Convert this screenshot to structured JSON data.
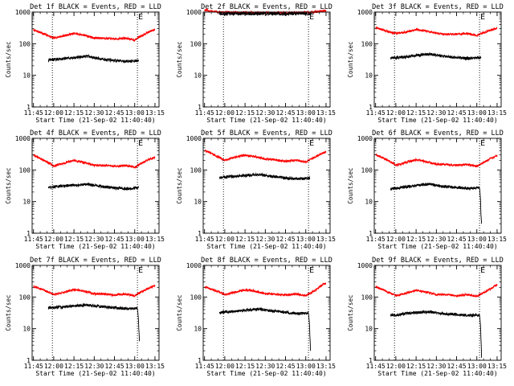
{
  "colors": {
    "events": "#000000",
    "lld": "#ff0000",
    "axis": "#000000",
    "background": "#ffffff"
  },
  "chart_data": [
    {
      "type": "line",
      "title": "Det 1f BLACK = Events, RED = LLD",
      "xlabel": "Start Time (21-Sep-02 11:40:40)",
      "ylabel": "Counts/sec",
      "yscale": "log",
      "ylim": [
        1,
        1000
      ],
      "xlim": [
        -1,
        93
      ],
      "grid": false,
      "x_ticks": [
        0,
        15,
        30,
        45,
        60,
        75,
        90
      ],
      "x_tick_labels": [
        "11:45",
        "12:00",
        "12:15",
        "12:30",
        "12:45",
        "13:00",
        "13:15"
      ],
      "y_ticks": [
        1,
        10,
        100,
        1000
      ],
      "y_tick_labels": [
        "1",
        "10",
        "100",
        "1000"
      ],
      "markers": [
        {
          "x": 14,
          "label": ""
        },
        {
          "x": 77,
          "label": "E"
        }
      ],
      "series": [
        {
          "x": [
            0,
            8,
            15,
            22,
            30,
            38,
            45,
            52,
            60,
            68,
            75,
            82,
            90
          ],
          "values": [
            270,
            200,
            150,
            175,
            210,
            185,
            150,
            150,
            140,
            150,
            130,
            200,
            280
          ]
        },
        {
          "x": [
            11,
            20,
            30,
            40,
            50,
            60,
            70,
            78
          ],
          "values": [
            30,
            33,
            36,
            40,
            33,
            29,
            27,
            30
          ]
        }
      ]
    },
    {
      "type": "line",
      "title": "Det 2f BLACK = Events, RED = LLD",
      "xlabel": "Start Time (21-Sep-02 11:40:40)",
      "ylabel": "Counts/sec",
      "yscale": "log",
      "ylim": [
        1,
        1000
      ],
      "xlim": [
        -1,
        93
      ],
      "grid": false,
      "x_ticks": [
        0,
        15,
        30,
        45,
        60,
        75,
        90
      ],
      "x_tick_labels": [
        "11:45",
        "12:00",
        "12:15",
        "12:30",
        "12:45",
        "13:00",
        "13:15"
      ],
      "y_ticks": [
        1,
        10,
        100,
        1000
      ],
      "y_tick_labels": [
        "1",
        "10",
        "100",
        "1000"
      ],
      "markers": [
        {
          "x": 14,
          "label": ""
        },
        {
          "x": 77,
          "label": "E"
        }
      ],
      "series": [
        {
          "x": [
            0,
            10,
            20,
            30,
            45,
            60,
            70,
            80,
            90
          ],
          "values": [
            1150,
            1000,
            980,
            970,
            960,
            950,
            960,
            990,
            1100
          ]
        },
        {
          "x": [
            11,
            20,
            30,
            45,
            60,
            70,
            79
          ],
          "values": [
            880,
            885,
            880,
            880,
            885,
            880,
            885
          ]
        }
      ]
    },
    {
      "type": "line",
      "title": "Det 3f BLACK = Events, RED = LLD",
      "xlabel": "Start Time (21-Sep-02 11:40:40)",
      "ylabel": "Counts/sec",
      "yscale": "log",
      "ylim": [
        1,
        1000
      ],
      "xlim": [
        -1,
        93
      ],
      "grid": false,
      "x_ticks": [
        0,
        15,
        30,
        45,
        60,
        75,
        90
      ],
      "x_tick_labels": [
        "11:45",
        "12:00",
        "12:15",
        "12:30",
        "12:45",
        "13:00",
        "13:15"
      ],
      "y_ticks": [
        1,
        10,
        100,
        1000
      ],
      "y_tick_labels": [
        "1",
        "10",
        "100",
        "1000"
      ],
      "markers": [
        {
          "x": 14,
          "label": ""
        },
        {
          "x": 77,
          "label": "E"
        }
      ],
      "series": [
        {
          "x": [
            0,
            8,
            15,
            22,
            30,
            38,
            45,
            52,
            60,
            68,
            75,
            82,
            90
          ],
          "values": [
            320,
            250,
            210,
            230,
            280,
            250,
            210,
            200,
            200,
            210,
            180,
            240,
            310
          ]
        },
        {
          "x": [
            11,
            20,
            30,
            40,
            50,
            60,
            70,
            78
          ],
          "values": [
            35,
            38,
            42,
            47,
            40,
            36,
            34,
            36
          ]
        }
      ]
    },
    {
      "type": "line",
      "title": "Det 4f BLACK = Events, RED = LLD",
      "xlabel": "Start Time (21-Sep-02 11:40:40)",
      "ylabel": "Counts/sec",
      "yscale": "log",
      "ylim": [
        1,
        1000
      ],
      "xlim": [
        -1,
        93
      ],
      "grid": false,
      "x_ticks": [
        0,
        15,
        30,
        45,
        60,
        75,
        90
      ],
      "x_tick_labels": [
        "11:45",
        "12:00",
        "12:15",
        "12:30",
        "12:45",
        "13:00",
        "13:15"
      ],
      "y_ticks": [
        1,
        10,
        100,
        1000
      ],
      "y_tick_labels": [
        "1",
        "10",
        "100",
        "1000"
      ],
      "markers": [
        {
          "x": 14,
          "label": ""
        },
        {
          "x": 77,
          "label": "E"
        }
      ],
      "series": [
        {
          "x": [
            0,
            8,
            15,
            22,
            30,
            38,
            45,
            52,
            60,
            68,
            75,
            82,
            90
          ],
          "values": [
            290,
            200,
            130,
            160,
            200,
            170,
            140,
            140,
            130,
            140,
            120,
            180,
            250
          ]
        },
        {
          "x": [
            11,
            20,
            30,
            40,
            50,
            60,
            70,
            78
          ],
          "values": [
            28,
            31,
            33,
            35,
            30,
            27,
            25,
            28
          ]
        }
      ]
    },
    {
      "type": "line",
      "title": "Det 5f BLACK = Events, RED = LLD",
      "xlabel": "Start Time (21-Sep-02 11:40:40)",
      "ylabel": "Counts/sec",
      "yscale": "log",
      "ylim": [
        1,
        1000
      ],
      "xlim": [
        -1,
        93
      ],
      "grid": false,
      "x_ticks": [
        0,
        15,
        30,
        45,
        60,
        75,
        90
      ],
      "x_tick_labels": [
        "11:45",
        "12:00",
        "12:15",
        "12:30",
        "12:45",
        "13:00",
        "13:15"
      ],
      "y_ticks": [
        1,
        10,
        100,
        1000
      ],
      "y_tick_labels": [
        "1",
        "10",
        "100",
        "1000"
      ],
      "markers": [
        {
          "x": 14,
          "label": ""
        },
        {
          "x": 77,
          "label": "E"
        }
      ],
      "series": [
        {
          "x": [
            0,
            8,
            15,
            22,
            30,
            38,
            45,
            52,
            60,
            68,
            75,
            82,
            90
          ],
          "values": [
            420,
            280,
            200,
            250,
            290,
            260,
            220,
            210,
            190,
            200,
            180,
            250,
            380
          ]
        },
        {
          "x": [
            11,
            20,
            30,
            40,
            50,
            60,
            70,
            78
          ],
          "values": [
            58,
            62,
            66,
            72,
            62,
            56,
            52,
            55
          ]
        }
      ]
    },
    {
      "type": "line",
      "title": "Det 6f BLACK = Events, RED = LLD",
      "xlabel": "Start Time (21-Sep-02 11:40:40)",
      "ylabel": "Counts/sec",
      "yscale": "log",
      "ylim": [
        1,
        1000
      ],
      "xlim": [
        -1,
        93
      ],
      "grid": false,
      "x_ticks": [
        0,
        15,
        30,
        45,
        60,
        75,
        90
      ],
      "x_tick_labels": [
        "11:45",
        "12:00",
        "12:15",
        "12:30",
        "12:45",
        "13:00",
        "13:15"
      ],
      "y_ticks": [
        1,
        10,
        100,
        1000
      ],
      "y_tick_labels": [
        "1",
        "10",
        "100",
        "1000"
      ],
      "markers": [
        {
          "x": 14,
          "label": ""
        },
        {
          "x": 77,
          "label": "E"
        }
      ],
      "series": [
        {
          "x": [
            0,
            8,
            15,
            22,
            30,
            38,
            45,
            52,
            60,
            68,
            75,
            82,
            90
          ],
          "values": [
            300,
            210,
            140,
            170,
            210,
            180,
            150,
            150,
            140,
            150,
            130,
            190,
            280
          ]
        },
        {
          "x": [
            11,
            20,
            30,
            40,
            50,
            60,
            70,
            77,
            78,
            78.5
          ],
          "values": [
            25,
            28,
            32,
            36,
            30,
            28,
            26,
            27,
            4,
            2
          ]
        }
      ]
    },
    {
      "type": "line",
      "title": "Det 7f BLACK = Events, RED = LLD",
      "xlabel": "Start Time (21-Sep-02 11:40:40)",
      "ylabel": "Counts/sec",
      "yscale": "log",
      "ylim": [
        1,
        1000
      ],
      "xlim": [
        -1,
        93
      ],
      "grid": false,
      "x_ticks": [
        0,
        15,
        30,
        45,
        60,
        75,
        90
      ],
      "x_tick_labels": [
        "11:45",
        "12:00",
        "12:15",
        "12:30",
        "12:45",
        "13:00",
        "13:15"
      ],
      "y_ticks": [
        1,
        10,
        100,
        1000
      ],
      "y_tick_labels": [
        "1",
        "10",
        "100",
        "1000"
      ],
      "markers": [
        {
          "x": 14,
          "label": ""
        },
        {
          "x": 77,
          "label": "E"
        }
      ],
      "series": [
        {
          "x": [
            0,
            8,
            15,
            22,
            30,
            38,
            45,
            52,
            60,
            68,
            75,
            82,
            90
          ],
          "values": [
            220,
            160,
            120,
            140,
            170,
            150,
            125,
            125,
            115,
            125,
            110,
            160,
            230
          ]
        },
        {
          "x": [
            11,
            20,
            30,
            40,
            50,
            60,
            70,
            77,
            78,
            78.5
          ],
          "values": [
            45,
            48,
            52,
            56,
            50,
            46,
            42,
            44,
            10,
            4
          ]
        }
      ]
    },
    {
      "type": "line",
      "title": "Det 8f BLACK = Events, RED = LLD",
      "xlabel": "Start Time (21-Sep-02 11:40:40)",
      "ylabel": "Counts/sec",
      "yscale": "log",
      "ylim": [
        1,
        1000
      ],
      "xlim": [
        -1,
        93
      ],
      "grid": false,
      "x_ticks": [
        0,
        15,
        30,
        45,
        60,
        75,
        90
      ],
      "x_tick_labels": [
        "11:45",
        "12:00",
        "12:15",
        "12:30",
        "12:45",
        "13:00",
        "13:15"
      ],
      "y_ticks": [
        1,
        10,
        100,
        1000
      ],
      "y_tick_labels": [
        "1",
        "10",
        "100",
        "1000"
      ],
      "markers": [
        {
          "x": 14,
          "label": ""
        },
        {
          "x": 77,
          "label": "E"
        }
      ],
      "series": [
        {
          "x": [
            0,
            8,
            15,
            22,
            30,
            38,
            45,
            52,
            60,
            68,
            75,
            82,
            90
          ],
          "values": [
            210,
            160,
            120,
            140,
            170,
            150,
            125,
            125,
            115,
            125,
            110,
            160,
            280
          ]
        },
        {
          "x": [
            11,
            20,
            30,
            40,
            50,
            60,
            70,
            77,
            78,
            78.5
          ],
          "values": [
            32,
            35,
            38,
            42,
            36,
            33,
            30,
            31,
            6,
            2
          ]
        }
      ]
    },
    {
      "type": "line",
      "title": "Det 9f BLACK = Events, RED = LLD",
      "xlabel": "Start Time (21-Sep-02 11:40:40)",
      "ylabel": "Counts/sec",
      "yscale": "log",
      "ylim": [
        1,
        1000
      ],
      "xlim": [
        -1,
        93
      ],
      "grid": false,
      "x_ticks": [
        0,
        15,
        30,
        45,
        60,
        75,
        90
      ],
      "x_tick_labels": [
        "11:45",
        "12:00",
        "12:15",
        "12:30",
        "12:45",
        "13:00",
        "13:15"
      ],
      "y_ticks": [
        1,
        10,
        100,
        1000
      ],
      "y_tick_labels": [
        "1",
        "10",
        "100",
        "1000"
      ],
      "markers": [
        {
          "x": 14,
          "label": ""
        },
        {
          "x": 77,
          "label": "E"
        }
      ],
      "series": [
        {
          "x": [
            0,
            8,
            15,
            22,
            30,
            38,
            45,
            52,
            60,
            68,
            75,
            82,
            90
          ],
          "values": [
            210,
            150,
            110,
            130,
            160,
            140,
            120,
            120,
            110,
            120,
            105,
            150,
            240
          ]
        },
        {
          "x": [
            11,
            20,
            30,
            40,
            50,
            60,
            70,
            77,
            78,
            78.5
          ],
          "values": [
            26,
            29,
            32,
            34,
            30,
            28,
            26,
            27,
            5,
            1.2
          ]
        }
      ]
    }
  ]
}
